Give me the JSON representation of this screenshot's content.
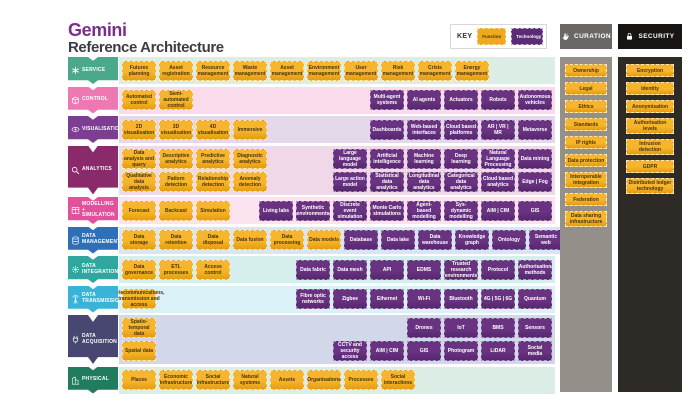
{
  "title": {
    "brand": "Gemini",
    "subtitle": "Reference Architecture"
  },
  "key": {
    "label": "KEY",
    "function_label": "Function",
    "technology_label": "Technology"
  },
  "colors": {
    "function": "#F0A91D",
    "technology": "#5C2B75",
    "function_text": "#45350F",
    "brand_purple": "#7B2E8C",
    "page_background": "#FFFFFF"
  },
  "rows": [
    {
      "id": "service",
      "label": "SERVICE",
      "icon": "asterisk-icon",
      "banner_color": "#4BA98B",
      "band_color": "#DBEDE4",
      "lines": [
        [
          {
            "type": "function",
            "align": "left",
            "items": [
              "Futures planning",
              "Asset registration",
              "Resource management",
              "Waste management",
              "Asset management",
              "Environment management",
              "User management",
              "Risk management",
              "Crisis management",
              "Energy management"
            ]
          }
        ]
      ]
    },
    {
      "id": "control",
      "label": "CONTROL",
      "icon": "cube-icon",
      "banner_color": "#EE79B2",
      "band_color": "#FADBEB",
      "lines": [
        [
          {
            "type": "function",
            "align": "left",
            "items": [
              "Automated control",
              "Semi-automated control"
            ]
          },
          {
            "type": "technology",
            "align": "right",
            "items": [
              "Multi-agent systems",
              "AI agents",
              "Actuators",
              "Robots",
              "Autonomous vehicles"
            ]
          }
        ]
      ]
    },
    {
      "id": "visualisation",
      "label": "VISUALISATION",
      "icon": "eye-icon",
      "banner_color": "#7C3E92",
      "band_color": "#E6D8EB",
      "lines": [
        [
          {
            "type": "function",
            "align": "left",
            "items": [
              "2D visualisation",
              "3D visualisation",
              "4D visualisation",
              "Immersive"
            ]
          },
          {
            "type": "technology",
            "align": "right",
            "items": [
              "Dashboards",
              "Web-based interfaces",
              "Cloud based platforms",
              "AR | VR | MR",
              "Metaverse"
            ]
          }
        ]
      ]
    },
    {
      "id": "analytics",
      "label": "ANALYTICS",
      "icon": "magnifier-icon",
      "banner_color": "#8A2A6B",
      "band_color": "#F1D8E8",
      "tall": true,
      "lines": [
        [
          {
            "type": "function",
            "align": "left",
            "items": [
              "Data analysis and query",
              "Descriptive analytics",
              "Predictive analytics",
              "Diagnostic analytics"
            ]
          },
          {
            "type": "technology",
            "align": "right",
            "items": [
              "Large language model",
              "Artificial intelligence",
              "Machine learning",
              "Deep learning",
              "Natural Language Processing",
              "Data mining"
            ]
          }
        ],
        [
          {
            "type": "function",
            "align": "left",
            "items": [
              "Qualitative data analysis",
              "Pattern detection",
              "Relationship detection",
              "Anomaly detection"
            ]
          },
          {
            "type": "technology",
            "align": "right",
            "items": [
              "Large action model",
              "Statistical data analytics",
              "Longitudinal data analytics",
              "Categorical data analytics",
              "Cloud based analytics",
              "Edge | Fog"
            ]
          }
        ]
      ]
    },
    {
      "id": "modelling-simulation",
      "label": "MODELLING + SIMULATION",
      "icon": "grid-icon",
      "banner_color": "#E1519C",
      "band_color": "#FBE2EF",
      "lines": [
        [
          {
            "type": "function",
            "align": "left",
            "items": [
              "Forecast",
              "Backcast",
              "Simulation"
            ]
          },
          {
            "type": "technology",
            "align": "right",
            "items": [
              "Living labs",
              "Synthetic environments",
              "Discrete event simulation",
              "Monte Carlo simulations",
              "Agent-based modelling",
              "Sys-dynamic modelling",
              "AIM | CIM",
              "GIS"
            ]
          }
        ]
      ]
    },
    {
      "id": "data-management",
      "label": "DATA MANAGEMENT",
      "icon": "database-icon",
      "banner_color": "#2F6FB7",
      "band_color": "#D7E6F4",
      "lines": [
        [
          {
            "type": "function",
            "align": "left",
            "items": [
              "Data storage",
              "Data retention",
              "Data disposal",
              "Data fusion",
              "Data processing",
              "Data models"
            ]
          },
          {
            "type": "technology",
            "align": "right",
            "items": [
              "Database",
              "Data lake",
              "Data warehouse",
              "Knowledge graph",
              "Ontology",
              "Semantic web"
            ]
          }
        ]
      ]
    },
    {
      "id": "data-integration",
      "label": "DATA INTEGRATION",
      "icon": "gear-icon",
      "banner_color": "#2FA79F",
      "band_color": "#D6EFEC",
      "lines": [
        [
          {
            "type": "function",
            "align": "left",
            "items": [
              "Data governance",
              "ETL processes",
              "Access control"
            ]
          },
          {
            "type": "technology",
            "align": "right",
            "items": [
              "Data fabric",
              "Data mesh",
              "API",
              "EDMS",
              "Trusted research environments",
              "Protocol",
              "Authorisation methods"
            ]
          }
        ]
      ]
    },
    {
      "id": "data-transmission",
      "label": "DATA TRANSMISSION",
      "icon": "antenna-icon",
      "banner_color": "#39B4D8",
      "band_color": "#DAF1F8",
      "lines": [
        [
          {
            "type": "function",
            "align": "left",
            "items": [
              "Telecommunications, transmission and access"
            ]
          },
          {
            "type": "technology",
            "align": "right",
            "items": [
              "Fibre optic networks",
              "Zigbee",
              "Ethernet",
              "Wi-Fi",
              "Bluetooth",
              "4G | 5G | 6G",
              "Quantum"
            ]
          }
        ]
      ]
    },
    {
      "id": "data-acquisition",
      "label": "DATA ACQUISITION",
      "icon": "plug-icon",
      "banner_color": "#474771",
      "band_color": "#D3D7EA",
      "tall": true,
      "lines": [
        [
          {
            "type": "function",
            "align": "left",
            "items": [
              "Spatio-temporal data"
            ]
          },
          {
            "type": "technology",
            "align": "right",
            "items": [
              "Drones",
              "IoT",
              "BMS",
              "Sensors"
            ]
          }
        ],
        [
          {
            "type": "function",
            "align": "left",
            "items": [
              "Spatial data"
            ]
          },
          {
            "type": "technology",
            "align": "right",
            "items": [
              "CCTV and security access",
              "AIM | CIM",
              "GIS",
              "Photogram",
              "LiDAR",
              "Social media"
            ]
          }
        ]
      ]
    },
    {
      "id": "physical",
      "label": "PHYSICAL",
      "icon": "building-icon",
      "banner_color": "#207B5F",
      "band_color": "#DBEDE4",
      "lines": [
        [
          {
            "type": "function",
            "align": "left",
            "items": [
              "Places",
              "Economic infrastructure",
              "Social infrastructure",
              "Natural systems",
              "Assets",
              "Organisations",
              "Processes",
              "Social interactions"
            ]
          }
        ]
      ]
    }
  ],
  "curation": {
    "label": "CURATION",
    "icon": "hand-icon",
    "header_color": "#6B6764",
    "body_color": "#949089",
    "items": [
      "Ownership",
      "Legal",
      "Ethics",
      "Standards",
      "IP rights",
      "Data protection",
      "Interoperable integration",
      "Federation",
      "Data sharing infrastructure"
    ]
  },
  "security": {
    "label": "SECURITY",
    "icon": "padlock-icon",
    "header_color": "#181512",
    "body_color": "#2E2A26",
    "items": [
      "Encryption",
      "Identity",
      "Anonymisation",
      "Authorisation levels",
      "Intrusion detection",
      "GDPR",
      "Distributed ledger technology"
    ]
  }
}
